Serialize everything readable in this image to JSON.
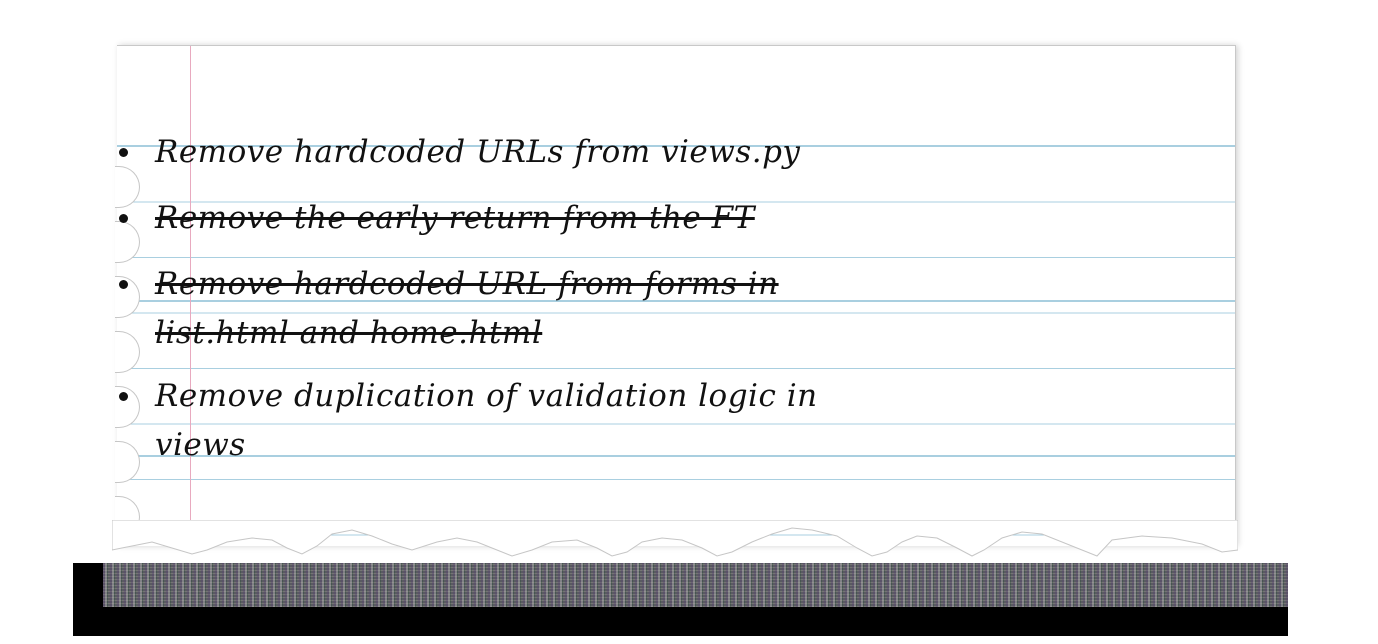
{
  "todo": {
    "items": [
      {
        "text": "Remove hardcoded URLs from views.py",
        "done": false
      },
      {
        "text": "Remove the early return from the FT",
        "done": true
      },
      {
        "text": "Remove hardcoded URL from forms in list.html and home.html",
        "done": true
      },
      {
        "text": "Remove duplication of validation logic in views",
        "done": false
      }
    ]
  },
  "colors": {
    "paper": "#ffffff",
    "rule_line": "#a9cfe0",
    "margin_line": "#e8a9bf",
    "ink": "#111111"
  }
}
